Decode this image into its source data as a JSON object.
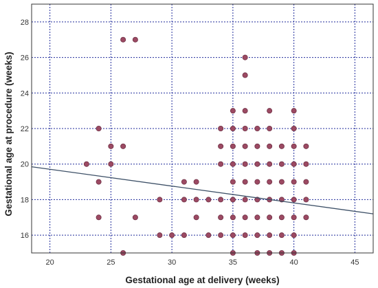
{
  "chart_data": {
    "type": "scatter",
    "title": "",
    "xlabel": "Gestational age at delivery (weeks)",
    "ylabel": "Gestational age at procedure (weeks)",
    "xlim": [
      18.5,
      46.5
    ],
    "ylim": [
      15,
      29
    ],
    "xticks": [
      20,
      25,
      30,
      35,
      40,
      45
    ],
    "yticks": [
      16,
      18,
      20,
      22,
      24,
      26,
      28
    ],
    "grid": true,
    "legend": "none",
    "colors": {
      "point_fill": "#9c4a63",
      "point_stroke": "#6e2f44",
      "grid": "#1f2a9b",
      "trendline": "#3c4f66",
      "frame": "#333333"
    },
    "points": [
      [
        23,
        20
      ],
      [
        24,
        22
      ],
      [
        24,
        19
      ],
      [
        24,
        17
      ],
      [
        25,
        21
      ],
      [
        25,
        20
      ],
      [
        26,
        27
      ],
      [
        26,
        21
      ],
      [
        26,
        15
      ],
      [
        27,
        27
      ],
      [
        27,
        17
      ],
      [
        29,
        18
      ],
      [
        29,
        16
      ],
      [
        30,
        16
      ],
      [
        31,
        19
      ],
      [
        31,
        18
      ],
      [
        31,
        16
      ],
      [
        32,
        19
      ],
      [
        32,
        18
      ],
      [
        32,
        17
      ],
      [
        33,
        18
      ],
      [
        33,
        16
      ],
      [
        34,
        22
      ],
      [
        34,
        21
      ],
      [
        34,
        20
      ],
      [
        34,
        18
      ],
      [
        34,
        17
      ],
      [
        34,
        16
      ],
      [
        35,
        23
      ],
      [
        35,
        22
      ],
      [
        35,
        21
      ],
      [
        35,
        20
      ],
      [
        35,
        19
      ],
      [
        35,
        18
      ],
      [
        35,
        17
      ],
      [
        35,
        16
      ],
      [
        35,
        15
      ],
      [
        36,
        26
      ],
      [
        36,
        25
      ],
      [
        36,
        23
      ],
      [
        36,
        22
      ],
      [
        36,
        21
      ],
      [
        36,
        20
      ],
      [
        36,
        19
      ],
      [
        36,
        18
      ],
      [
        36,
        17
      ],
      [
        36,
        16
      ],
      [
        37,
        22
      ],
      [
        37,
        21
      ],
      [
        37,
        20
      ],
      [
        37,
        19
      ],
      [
        37,
        18
      ],
      [
        37,
        17
      ],
      [
        37,
        16
      ],
      [
        37,
        15
      ],
      [
        38,
        23
      ],
      [
        38,
        22
      ],
      [
        38,
        21
      ],
      [
        38,
        20
      ],
      [
        38,
        19
      ],
      [
        38,
        18
      ],
      [
        38,
        17
      ],
      [
        38,
        16
      ],
      [
        38,
        15
      ],
      [
        39,
        21
      ],
      [
        39,
        20
      ],
      [
        39,
        19
      ],
      [
        39,
        18
      ],
      [
        39,
        17
      ],
      [
        39,
        16
      ],
      [
        39,
        15
      ],
      [
        40,
        23
      ],
      [
        40,
        22
      ],
      [
        40,
        21
      ],
      [
        40,
        20
      ],
      [
        40,
        19
      ],
      [
        40,
        18
      ],
      [
        40,
        17
      ],
      [
        40,
        16
      ],
      [
        40,
        15
      ],
      [
        41,
        21
      ],
      [
        41,
        20
      ],
      [
        41,
        19
      ],
      [
        41,
        18
      ],
      [
        41,
        17
      ]
    ],
    "trendline": {
      "x": [
        18.5,
        46.5
      ],
      "y": [
        19.85,
        17.2
      ]
    }
  }
}
